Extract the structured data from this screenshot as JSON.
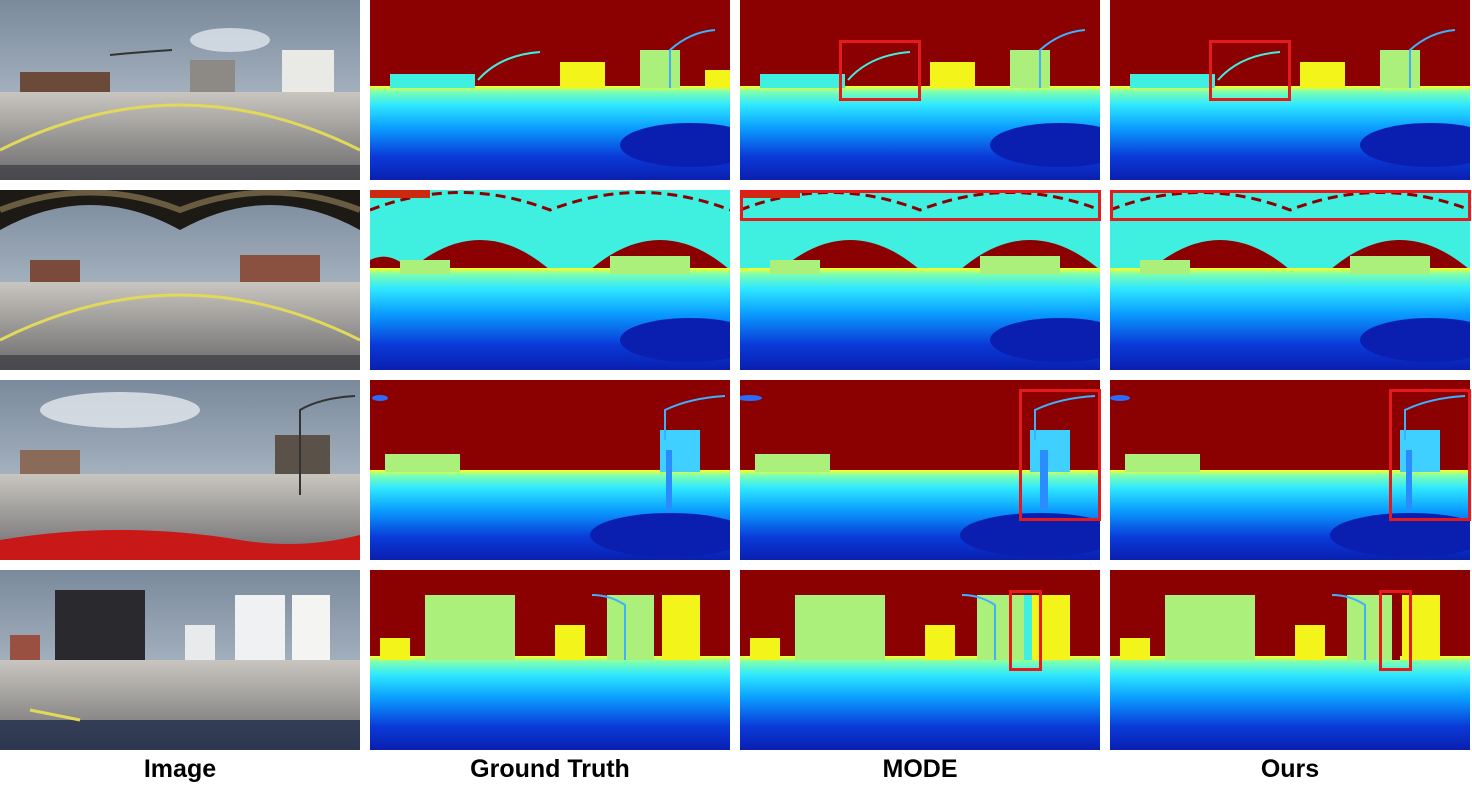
{
  "columns": [
    {
      "label": "Image"
    },
    {
      "label": "Ground Truth"
    },
    {
      "label": "MODE"
    },
    {
      "label": "Ours"
    }
  ],
  "rows": [
    {
      "scene": "street-intersection"
    },
    {
      "scene": "under-elevated-track"
    },
    {
      "scene": "suburban-street"
    },
    {
      "scene": "downtown-buildings"
    }
  ],
  "colors": {
    "far": "#8b0000",
    "mid_yellow": "#f3f51a",
    "mid_cyan": "#3ff0e0",
    "near_blue": "#0a3ad8",
    "nearest": "#000a8f",
    "highlight": "#e41a1c"
  }
}
